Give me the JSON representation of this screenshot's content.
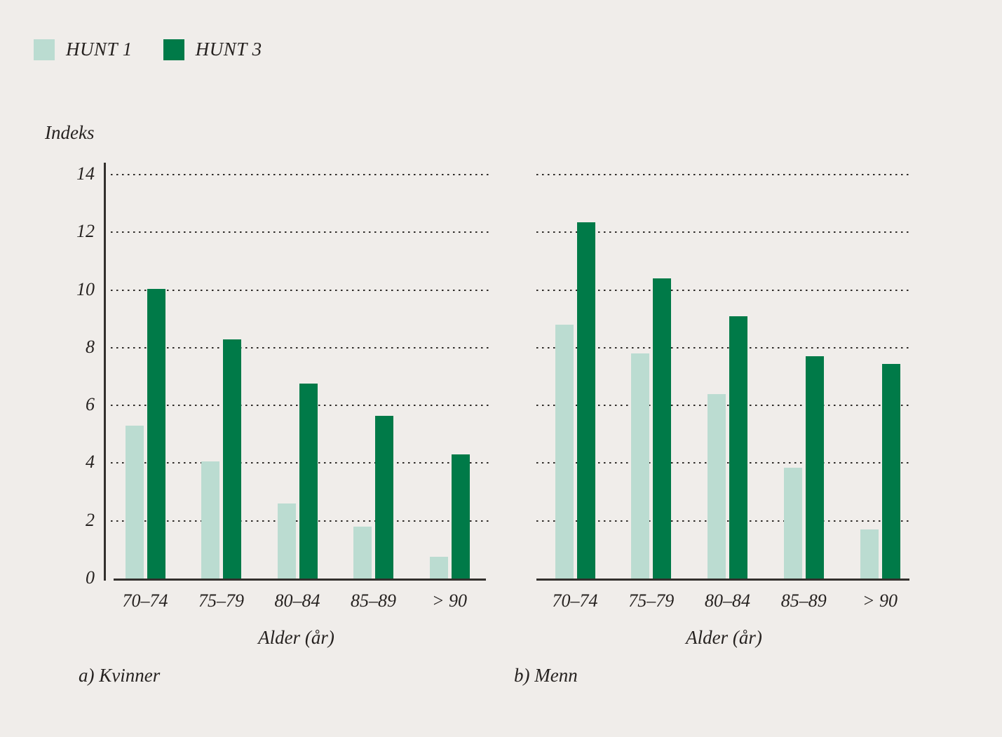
{
  "colors": {
    "background": "#F0EDEA",
    "hunt1": "#BBDCD1",
    "hunt3": "#007A48",
    "axis": "#33302D",
    "grid_dots": "#2E2B28",
    "text": "#262220"
  },
  "legend": {
    "items": [
      {
        "label": "HUNT 1",
        "color": "#BBDCD1"
      },
      {
        "label": "HUNT 3",
        "color": "#007A48"
      }
    ]
  },
  "y_axis_title": "Indeks",
  "chart_data": [
    {
      "type": "bar",
      "title": "a) Kvinner",
      "xlabel": "Alder (år)",
      "ylabel": "Indeks",
      "ylim": [
        0,
        14
      ],
      "yticks": [
        0,
        2,
        4,
        6,
        8,
        10,
        12,
        14
      ],
      "grid": "horizontal-dotted",
      "legend_position": "top-left",
      "categories": [
        "70–74",
        "75–79",
        "80–84",
        "85–89",
        "> 90"
      ],
      "series": [
        {
          "name": "HUNT 1",
          "color": "#BBDCD1",
          "values": [
            5.3,
            4.05,
            2.6,
            1.8,
            0.75
          ]
        },
        {
          "name": "HUNT 3",
          "color": "#007A48",
          "values": [
            10.05,
            8.3,
            6.75,
            5.65,
            4.3
          ]
        }
      ]
    },
    {
      "type": "bar",
      "title": "b) Menn",
      "xlabel": "Alder (år)",
      "ylabel": "Indeks",
      "ylim": [
        0,
        14
      ],
      "yticks": [
        0,
        2,
        4,
        6,
        8,
        10,
        12,
        14
      ],
      "grid": "horizontal-dotted",
      "legend_position": "top-left",
      "categories": [
        "70–74",
        "75–79",
        "80–84",
        "85–89",
        "> 90"
      ],
      "series": [
        {
          "name": "HUNT 1",
          "color": "#BBDCD1",
          "values": [
            8.8,
            7.8,
            6.4,
            3.85,
            1.7
          ]
        },
        {
          "name": "HUNT 3",
          "color": "#007A48",
          "values": [
            12.35,
            10.4,
            9.1,
            7.7,
            7.45
          ]
        }
      ]
    }
  ]
}
